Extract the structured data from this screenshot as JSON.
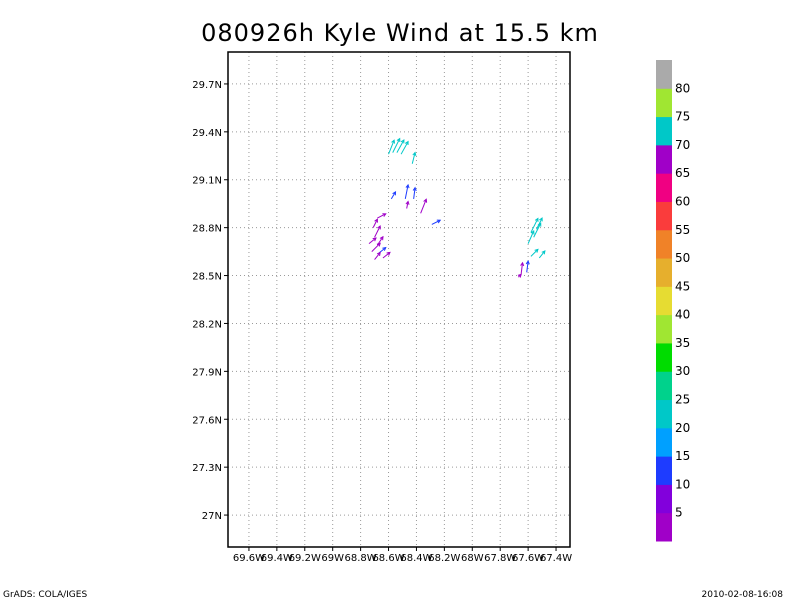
{
  "chart_data": {
    "type": "vector-field",
    "title": "080926h Kyle Wind at 15.5 km",
    "xlim": [
      -69.75,
      -67.3
    ],
    "ylim": [
      26.8,
      29.9
    ],
    "x_ticks": [
      {
        "value": -69.6,
        "label": "69.6W"
      },
      {
        "value": -69.4,
        "label": "69.4W"
      },
      {
        "value": -69.2,
        "label": "69.2W"
      },
      {
        "value": -69.0,
        "label": "69W"
      },
      {
        "value": -68.8,
        "label": "68.8W"
      },
      {
        "value": -68.6,
        "label": "68.6W"
      },
      {
        "value": -68.4,
        "label": "68.4W"
      },
      {
        "value": -68.2,
        "label": "68.2W"
      },
      {
        "value": -68.0,
        "label": "68W"
      },
      {
        "value": -67.8,
        "label": "67.8W"
      },
      {
        "value": -67.6,
        "label": "67.6W"
      },
      {
        "value": -67.4,
        "label": "67.4W"
      }
    ],
    "y_ticks": [
      {
        "value": 27.0,
        "label": "27N"
      },
      {
        "value": 27.3,
        "label": "27.3N"
      },
      {
        "value": 27.6,
        "label": "27.6N"
      },
      {
        "value": 27.9,
        "label": "27.9N"
      },
      {
        "value": 28.2,
        "label": "28.2N"
      },
      {
        "value": 28.5,
        "label": "28.5N"
      },
      {
        "value": 28.8,
        "label": "28.8N"
      },
      {
        "value": 29.1,
        "label": "29.1N"
      },
      {
        "value": 29.4,
        "label": "29.4N"
      },
      {
        "value": 29.7,
        "label": "29.7N"
      }
    ],
    "grid": true,
    "colorbar": {
      "labels": [
        "5",
        "10",
        "15",
        "20",
        "25",
        "30",
        "35",
        "40",
        "45",
        "50",
        "55",
        "60",
        "65",
        "70",
        "75",
        "80"
      ],
      "colors": [
        "#a000c8",
        "#8200dc",
        "#1e3cff",
        "#00a0ff",
        "#00c8c8",
        "#00d28c",
        "#00dc00",
        "#a0e632",
        "#e6dc32",
        "#e6af2d",
        "#f08228",
        "#fa3c3c",
        "#f00082",
        "#a000c8",
        "#00c8c8",
        "#a0e632",
        "#aaaaaa"
      ]
    },
    "vectors": [
      {
        "x": -68.6,
        "y": 29.26,
        "u": 4,
        "v": 10,
        "speed": 72
      },
      {
        "x": -68.57,
        "y": 29.27,
        "u": 5,
        "v": 10,
        "speed": 72
      },
      {
        "x": -68.54,
        "y": 29.27,
        "u": 5,
        "v": 9,
        "speed": 72
      },
      {
        "x": -68.51,
        "y": 29.26,
        "u": 5,
        "v": 9,
        "speed": 72
      },
      {
        "x": -68.43,
        "y": 29.2,
        "u": 2,
        "v": 8,
        "speed": 72
      },
      {
        "x": -68.58,
        "y": 28.98,
        "u": 3,
        "v": 5,
        "speed": 13
      },
      {
        "x": -68.48,
        "y": 28.98,
        "u": 2,
        "v": 10,
        "speed": 13
      },
      {
        "x": -68.42,
        "y": 28.98,
        "u": 1,
        "v": 8,
        "speed": 13
      },
      {
        "x": -68.47,
        "y": 28.92,
        "u": 1,
        "v": 5,
        "speed": 67
      },
      {
        "x": -68.37,
        "y": 28.89,
        "u": 4,
        "v": 10,
        "speed": 67
      },
      {
        "x": -68.29,
        "y": 28.82,
        "u": 6,
        "v": 3,
        "speed": 13
      },
      {
        "x": -68.68,
        "y": 28.86,
        "u": 6,
        "v": 3,
        "speed": 67
      },
      {
        "x": -68.71,
        "y": 28.8,
        "u": 3,
        "v": 6,
        "speed": 67
      },
      {
        "x": -68.7,
        "y": 28.74,
        "u": 4,
        "v": 8,
        "speed": 67
      },
      {
        "x": -68.74,
        "y": 28.7,
        "u": 5,
        "v": 4,
        "speed": 67
      },
      {
        "x": -68.68,
        "y": 28.69,
        "u": 4,
        "v": 6,
        "speed": 67
      },
      {
        "x": -68.72,
        "y": 28.65,
        "u": 6,
        "v": 6,
        "speed": 67
      },
      {
        "x": -68.67,
        "y": 28.64,
        "u": 5,
        "v": 4,
        "speed": 12
      },
      {
        "x": -68.7,
        "y": 28.6,
        "u": 4,
        "v": 5,
        "speed": 67
      },
      {
        "x": -68.64,
        "y": 28.61,
        "u": 5,
        "v": 4,
        "speed": 67
      },
      {
        "x": -67.58,
        "y": 28.77,
        "u": 5,
        "v": 10,
        "speed": 72
      },
      {
        "x": -67.56,
        "y": 28.74,
        "u": 5,
        "v": 10,
        "speed": 72
      },
      {
        "x": -67.54,
        "y": 28.79,
        "u": 4,
        "v": 8,
        "speed": 72
      },
      {
        "x": -67.6,
        "y": 28.7,
        "u": 4,
        "v": 9,
        "speed": 72
      },
      {
        "x": -67.58,
        "y": 28.62,
        "u": 5,
        "v": 5,
        "speed": 72
      },
      {
        "x": -67.52,
        "y": 28.61,
        "u": 4,
        "v": 5,
        "speed": 72
      },
      {
        "x": -67.65,
        "y": 28.51,
        "u": 1,
        "v": 8,
        "speed": 67
      },
      {
        "x": -67.61,
        "y": 28.52,
        "u": 1,
        "v": 8,
        "speed": 13
      },
      {
        "x": -67.67,
        "y": 28.49,
        "u": 2,
        "v": 2,
        "speed": 67
      }
    ]
  },
  "footer": {
    "left": "GrADS: COLA/IGES",
    "right": "2010-02-08-16:08"
  }
}
